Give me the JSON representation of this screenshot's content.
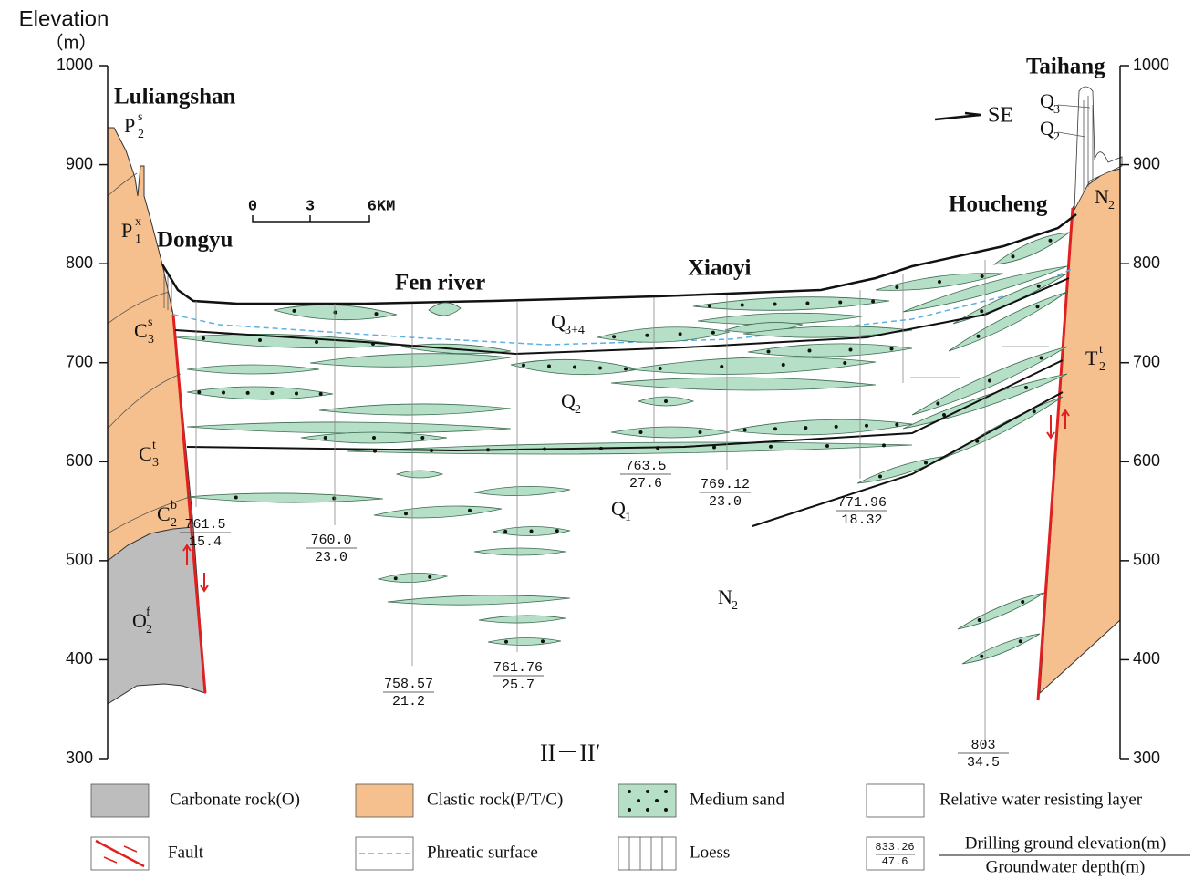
{
  "axes": {
    "title": "Elevation",
    "unit": "（m）",
    "left_ticks": [
      1000,
      900,
      800,
      700,
      600,
      500,
      400,
      300
    ],
    "right_ticks": [
      1000,
      900,
      800,
      700,
      600,
      500,
      400,
      300
    ]
  },
  "places": [
    "Luliangshan",
    "Dongyu",
    "Fen river",
    "Xiaoyi",
    "Houcheng",
    "Taihang"
  ],
  "direction": "SE",
  "scale": [
    "0",
    "3",
    "6KM"
  ],
  "units": [
    {
      "base": "P",
      "sub": "2",
      "sup": "s"
    },
    {
      "base": "P",
      "sub": "1",
      "sup": "x"
    },
    {
      "base": "C",
      "sub": "3",
      "sup": "s"
    },
    {
      "base": "C",
      "sub": "3",
      "sup": "t"
    },
    {
      "base": "C",
      "sub": "2",
      "sup": "b"
    },
    {
      "base": "O",
      "sub": "2",
      "sup": "f"
    },
    {
      "base": "Q",
      "sub": "3+4"
    },
    {
      "base": "Q",
      "sub": "2"
    },
    {
      "base": "Q",
      "sub": "1"
    },
    {
      "base": "N",
      "sub": "2"
    },
    {
      "base": "T",
      "sub": "2",
      "sup": "t"
    },
    {
      "base": "N",
      "sub": "2"
    },
    {
      "base": "Q",
      "sub": "3"
    },
    {
      "base": "Q",
      "sub": "2"
    }
  ],
  "section": "II－II′",
  "wells": [
    {
      "elevation": "761.5",
      "depth": "15.4"
    },
    {
      "elevation": "760.0",
      "depth": "23.0"
    },
    {
      "elevation": "758.57",
      "depth": "21.2"
    },
    {
      "elevation": "761.76",
      "depth": "25.7"
    },
    {
      "elevation": "763.5",
      "depth": "27.6"
    },
    {
      "elevation": "769.12",
      "depth": "23.0"
    },
    {
      "elevation": "771.96",
      "depth": "18.32"
    },
    {
      "elevation": "803",
      "depth": "34.5"
    }
  ],
  "legend": [
    {
      "label": "Carbonate rock(O)"
    },
    {
      "label": "Clastic rock(P/T/C)"
    },
    {
      "label": "Medium sand"
    },
    {
      "label": "Relative water resisting layer"
    },
    {
      "label": "Fault"
    },
    {
      "label": "Phreatic surface"
    },
    {
      "label": "Loess"
    },
    {
      "label": "Drilling ground elevation(m)",
      "label2": "Groundwater depth(m)",
      "sample": {
        "elevation": "833.26",
        "depth": "47.6"
      }
    }
  ]
}
